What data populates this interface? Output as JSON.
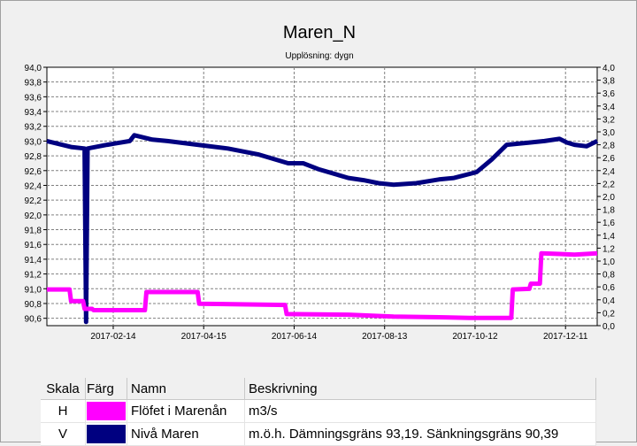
{
  "chart_data": {
    "type": "line",
    "title": "Maren_N",
    "subtitle": "Upplösning: dygn",
    "x_ticks": [
      "2017-02-14",
      "2017-04-15",
      "2017-06-14",
      "2017-08-13",
      "2017-10-12",
      "2017-12-11"
    ],
    "x_tick_days": [
      44,
      104,
      164,
      224,
      284,
      344
    ],
    "xlim": [
      0,
      365
    ],
    "left_axis": {
      "ylim": [
        90.5,
        94.0
      ],
      "ticks": [
        "94,0",
        "93,8",
        "93,6",
        "93,4",
        "93,2",
        "93,0",
        "92,8",
        "92,6",
        "92,4",
        "92,2",
        "92,0",
        "91,8",
        "91,6",
        "91,4",
        "91,2",
        "91,0",
        "90,8",
        "90,6"
      ],
      "tick_values": [
        94.0,
        93.8,
        93.6,
        93.4,
        93.2,
        93.0,
        92.8,
        92.6,
        92.4,
        92.2,
        92.0,
        91.8,
        91.6,
        91.4,
        91.2,
        91.0,
        90.8,
        90.6
      ]
    },
    "right_axis": {
      "ylim": [
        0.0,
        4.0
      ],
      "ticks": [
        "4,0",
        "3,8",
        "3,6",
        "3,4",
        "3,2",
        "3,0",
        "2,8",
        "2,6",
        "2,4",
        "2,2",
        "2,0",
        "1,8",
        "1,6",
        "1,4",
        "1,2",
        "1,0",
        "0,8",
        "0,6",
        "0,4",
        "0,2",
        "0,0"
      ],
      "tick_values": [
        4.0,
        3.8,
        3.6,
        3.4,
        3.2,
        3.0,
        2.8,
        2.6,
        2.4,
        2.2,
        2.0,
        1.8,
        1.6,
        1.4,
        1.2,
        1.0,
        0.8,
        0.6,
        0.4,
        0.2,
        0.0
      ]
    },
    "series": [
      {
        "name": "Nivå Maren",
        "axis": "left",
        "color": "#000080",
        "x": [
          0,
          10,
          16,
          25,
          26,
          27,
          40,
          55,
          58,
          70,
          80,
          100,
          120,
          140,
          160,
          170,
          180,
          200,
          210,
          220,
          230,
          245,
          260,
          270,
          285,
          295,
          305,
          320,
          330,
          340,
          345,
          350,
          358,
          365
        ],
        "y": [
          93.0,
          92.95,
          92.92,
          92.9,
          90.55,
          92.9,
          92.95,
          93.0,
          93.08,
          93.02,
          93.0,
          92.95,
          92.9,
          92.82,
          92.7,
          92.7,
          92.62,
          92.5,
          92.47,
          92.43,
          92.41,
          92.43,
          92.48,
          92.5,
          92.58,
          92.75,
          92.95,
          92.98,
          93.0,
          93.03,
          92.98,
          92.95,
          92.93,
          93.0
        ]
      },
      {
        "name": "Flöfet i Marenån",
        "axis": "right",
        "color": "#ff00ff",
        "x": [
          0,
          15,
          16,
          24,
          25,
          30,
          31,
          65,
          66,
          100,
          101,
          158,
          159,
          200,
          230,
          260,
          280,
          300,
          308,
          309,
          320,
          321,
          327,
          328,
          350,
          365
        ],
        "y": [
          0.56,
          0.56,
          0.38,
          0.38,
          0.26,
          0.26,
          0.24,
          0.24,
          0.52,
          0.52,
          0.34,
          0.32,
          0.18,
          0.17,
          0.14,
          0.13,
          0.12,
          0.12,
          0.12,
          0.56,
          0.57,
          0.65,
          0.65,
          1.12,
          1.1,
          1.12
        ]
      }
    ]
  },
  "legend": {
    "headers": {
      "scale": "Skala",
      "color": "Färg",
      "name": "Namn",
      "description": "Beskrivning"
    },
    "rows": [
      {
        "scale": "H",
        "color": "#ff00ff",
        "name": "Flöfet i Marenån",
        "description": "m3/s"
      },
      {
        "scale": "V",
        "color": "#000080",
        "name": "Nivå Maren",
        "description": "m.ö.h. Dämningsgräns 93,19. Sänkningsgräns 90,39"
      }
    ]
  }
}
